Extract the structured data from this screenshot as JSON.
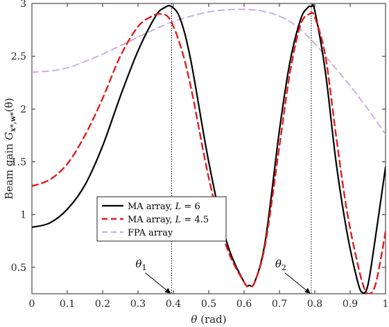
{
  "chart_data": {
    "type": "line",
    "title": "",
    "xlabel": "θ (rad)",
    "ylabel": "Beam gain G_{x*,w*}(θ)",
    "xlim": [
      0,
      1
    ],
    "ylim": [
      0.25,
      3
    ],
    "xticks": [
      0,
      0.1,
      0.2,
      0.3,
      0.4,
      0.5,
      0.6,
      0.7,
      0.8,
      0.9,
      1
    ],
    "xtick_labels": [
      "0",
      "0.1",
      "0.2",
      "0.3",
      "0.4",
      "0.5",
      "0.6",
      "0.7",
      "0.8",
      "0.9",
      "1"
    ],
    "yticks": [
      0.5,
      1,
      1.5,
      2,
      2.5,
      3
    ],
    "ytick_labels": [
      "0.5",
      "1",
      "1.5",
      "2",
      "2.5",
      "3"
    ],
    "grid": false,
    "legend_position": "lower-center",
    "series": [
      {
        "name": "MA array, L = 6",
        "color": "#000000",
        "style": "solid",
        "x": [
          0,
          0.05,
          0.1,
          0.15,
          0.2,
          0.25,
          0.3,
          0.35,
          0.375,
          0.395,
          0.42,
          0.45,
          0.5,
          0.55,
          0.6,
          0.615,
          0.63,
          0.66,
          0.7,
          0.73,
          0.76,
          0.78,
          0.79,
          0.8,
          0.83,
          0.86,
          0.89,
          0.92,
          0.935,
          0.95,
          0.97,
          1
        ],
        "y": [
          0.88,
          0.92,
          1.05,
          1.28,
          1.65,
          2.12,
          2.55,
          2.88,
          2.96,
          2.97,
          2.85,
          2.45,
          1.5,
          0.75,
          0.36,
          0.33,
          0.36,
          0.75,
          1.8,
          2.45,
          2.85,
          2.96,
          2.97,
          2.93,
          2.35,
          1.5,
          0.85,
          0.38,
          0.26,
          0.33,
          0.75,
          1.45
        ]
      },
      {
        "name": "MA array, L = 4.5",
        "color": "#e41a1c",
        "style": "dashed",
        "x": [
          0,
          0.05,
          0.1,
          0.15,
          0.2,
          0.25,
          0.3,
          0.34,
          0.365,
          0.39,
          0.42,
          0.45,
          0.5,
          0.55,
          0.6,
          0.615,
          0.63,
          0.66,
          0.7,
          0.73,
          0.76,
          0.785,
          0.8,
          0.83,
          0.86,
          0.89,
          0.92,
          0.94,
          0.955,
          0.97,
          0.985,
          1
        ],
        "y": [
          1.27,
          1.33,
          1.48,
          1.75,
          2.1,
          2.5,
          2.78,
          2.88,
          2.9,
          2.85,
          2.6,
          2.2,
          1.35,
          0.7,
          0.36,
          0.33,
          0.36,
          0.72,
          1.65,
          2.35,
          2.8,
          2.9,
          2.87,
          2.5,
          1.75,
          1.05,
          0.55,
          0.3,
          0.25,
          0.32,
          0.55,
          0.84
        ]
      },
      {
        "name": "FPA array",
        "color": "#c9aee8",
        "style": "dashed",
        "x": [
          0,
          0.05,
          0.1,
          0.15,
          0.2,
          0.25,
          0.3,
          0.35,
          0.4,
          0.45,
          0.5,
          0.55,
          0.6,
          0.62,
          0.65,
          0.7,
          0.75,
          0.8,
          0.85,
          0.9,
          0.95,
          1
        ],
        "y": [
          2.35,
          2.36,
          2.39,
          2.45,
          2.52,
          2.6,
          2.68,
          2.76,
          2.83,
          2.88,
          2.92,
          2.94,
          2.945,
          2.94,
          2.93,
          2.88,
          2.78,
          2.62,
          2.42,
          2.22,
          2.0,
          1.76
        ]
      }
    ],
    "annotations": [
      {
        "label": "θ1",
        "sym": "θ",
        "sub": "1",
        "x": 0.395,
        "arrow_to_y": 0.25,
        "text_y": 0.5
      },
      {
        "label": "θ2",
        "sym": "θ",
        "sub": "2",
        "x": 0.79,
        "arrow_to_y": 0.25,
        "text_y": 0.5
      }
    ],
    "legend": {
      "entries": [
        {
          "series_index": 0,
          "text": "MA array, ",
          "var": "L",
          "eq": " = 6"
        },
        {
          "series_index": 1,
          "text": "MA array, ",
          "var": "L",
          "eq": " = 4.5"
        },
        {
          "series_index": 2,
          "text": "FPA array",
          "var": "",
          "eq": ""
        }
      ]
    },
    "ylabel_parts": {
      "prefix": "Beam gain ",
      "sym": "G",
      "sub": "x*,w*",
      "suffix": "(θ)"
    },
    "xlabel_parts": {
      "sym": "θ",
      "suffix": " (rad)"
    }
  }
}
